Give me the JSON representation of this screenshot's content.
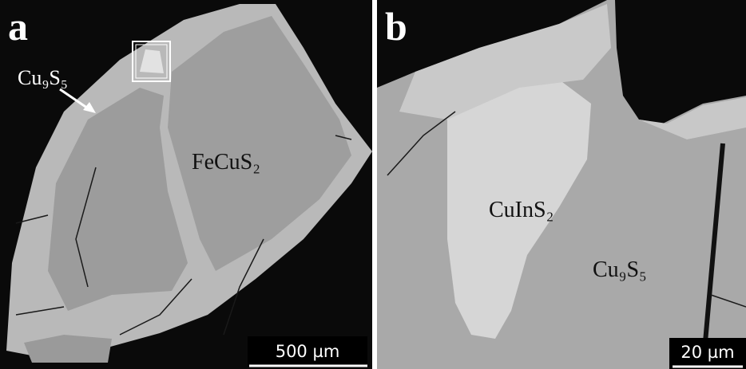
{
  "panel_a": {
    "label": "a",
    "annotations": [
      "Cu₉S₅",
      "FeCuS₂"
    ],
    "scale_bar": "500 µm"
  },
  "panel_b": {
    "label": "b",
    "annotations": [
      "CuInS₂",
      "Cu₉S₅"
    ],
    "scale_bar": "20 µm"
  }
}
